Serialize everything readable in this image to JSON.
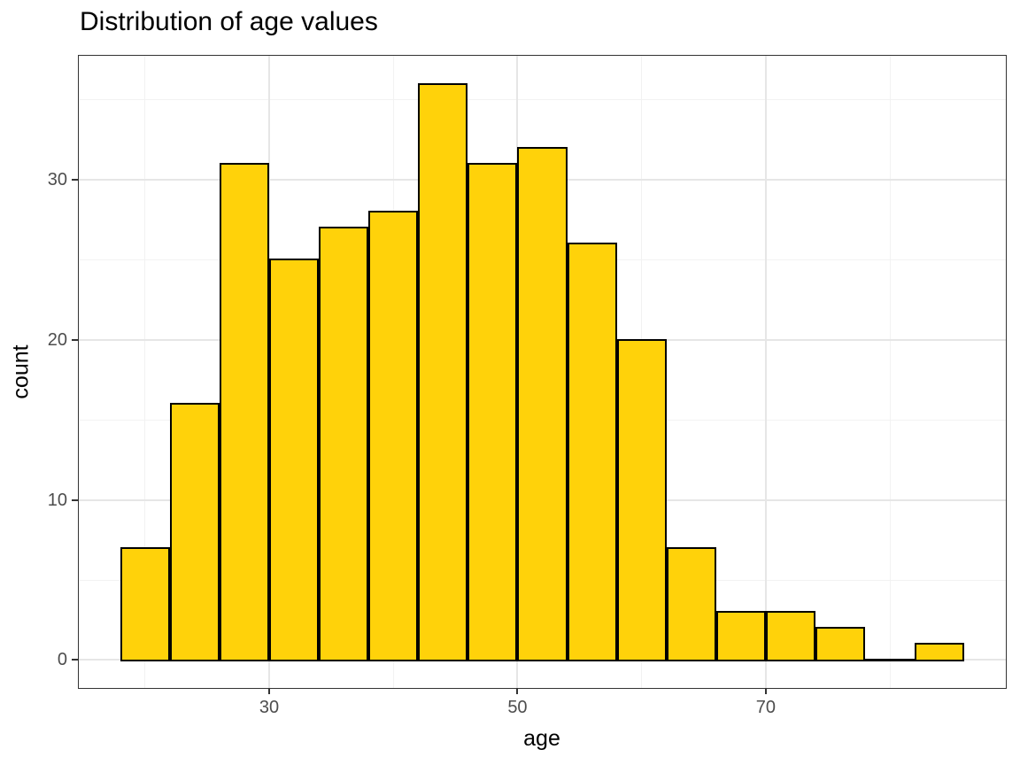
{
  "title": "Distribution of age values",
  "chart_data": {
    "type": "bar",
    "subtype": "histogram",
    "title": "Distribution of age values",
    "xlabel": "age",
    "ylabel": "count",
    "bin_width": 4,
    "bins": [
      {
        "range": [
          18,
          22
        ],
        "count": 7
      },
      {
        "range": [
          22,
          26
        ],
        "count": 16
      },
      {
        "range": [
          26,
          30
        ],
        "count": 31
      },
      {
        "range": [
          30,
          34
        ],
        "count": 25
      },
      {
        "range": [
          34,
          38
        ],
        "count": 27
      },
      {
        "range": [
          38,
          42
        ],
        "count": 28
      },
      {
        "range": [
          42,
          46
        ],
        "count": 36
      },
      {
        "range": [
          46,
          50
        ],
        "count": 31
      },
      {
        "range": [
          50,
          54
        ],
        "count": 32
      },
      {
        "range": [
          54,
          58
        ],
        "count": 26
      },
      {
        "range": [
          58,
          62
        ],
        "count": 20
      },
      {
        "range": [
          62,
          66
        ],
        "count": 7
      },
      {
        "range": [
          66,
          70
        ],
        "count": 3
      },
      {
        "range": [
          70,
          74
        ],
        "count": 3
      },
      {
        "range": [
          74,
          78
        ],
        "count": 2
      },
      {
        "range": [
          78,
          82
        ],
        "count": 0
      },
      {
        "range": [
          82,
          86
        ],
        "count": 1
      }
    ],
    "xlim": [
      14.6,
      89.4
    ],
    "ylim": [
      -1.8,
      37.8
    ],
    "x_ticks": {
      "values": [
        30,
        50,
        70
      ],
      "labels": [
        "30",
        "50",
        "70"
      ]
    },
    "y_ticks": {
      "values": [
        0,
        10,
        20,
        30
      ],
      "labels": [
        "0",
        "10",
        "20",
        "30"
      ]
    },
    "x_minor_gridlines": [
      20,
      40,
      60,
      80
    ],
    "y_minor_gridlines": [
      5,
      15,
      25,
      35
    ],
    "grid": true,
    "legend": false,
    "colors": {
      "bar_fill": "#FFD20A",
      "bar_stroke": "#000000",
      "grid_major": "#E6E6E6",
      "grid_minor": "#F2F2F2",
      "panel_border": "#333333",
      "tick_mark": "#333333",
      "tick_label": "#4D4D4D",
      "text": "#000000",
      "background": "#FFFFFF"
    }
  }
}
